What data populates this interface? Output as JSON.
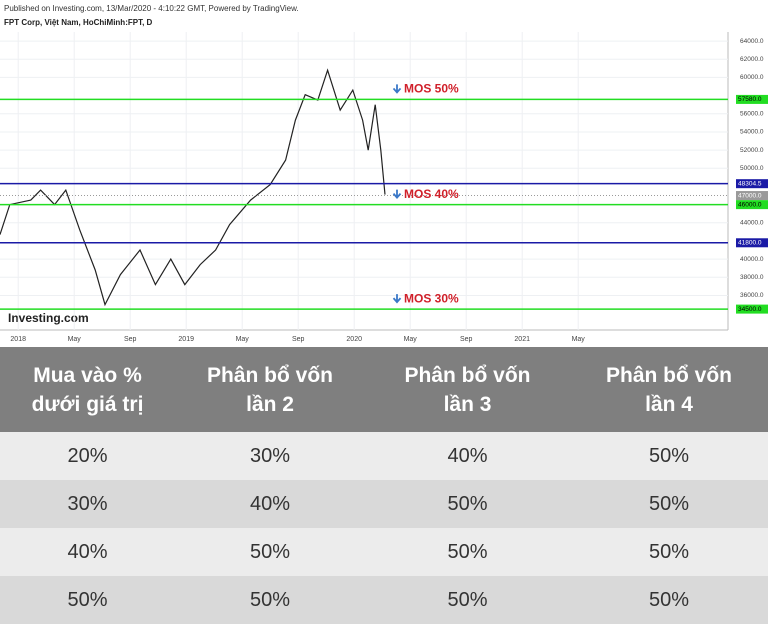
{
  "chart_data": {
    "type": "line",
    "header": "Published on Investing.com, 13/Mar/2020 - 4:10:22 GMT, Powered by TradingView.",
    "title": "FPT Corp, Việt Nam, HoChiMinh:FPT, D",
    "logo": "Investing.com",
    "color": "#222222",
    "x": [
      -1.3,
      -0.6,
      0.9,
      1.6,
      2.6,
      3.4,
      4.4,
      5.5,
      6.2,
      7.3,
      8.7,
      9.8,
      10.9,
      11.9,
      13.0,
      14.1,
      15.1,
      16.6,
      18.0,
      19.1,
      19.8,
      20.5,
      21.4,
      22.1,
      23.0,
      23.9,
      24.6,
      25.0,
      25.5,
      25.9,
      26.2
    ],
    "values": [
      42700,
      46000,
      46500,
      47600,
      46000,
      47600,
      43200,
      38800,
      35000,
      38300,
      41000,
      37200,
      40000,
      37200,
      39400,
      41000,
      43800,
      46500,
      48200,
      50900,
      55300,
      58100,
      57500,
      60800,
      56400,
      58600,
      55300,
      52000,
      57000,
      52000,
      47100
    ],
    "xlim": [
      -1.3,
      50.7
    ],
    "ylim": [
      32200,
      65000
    ],
    "xticks": [
      {
        "value": 0,
        "label": "2018"
      },
      {
        "value": 4,
        "label": "May"
      },
      {
        "value": 8,
        "label": "Sep"
      },
      {
        "value": 12,
        "label": "2019"
      },
      {
        "value": 16,
        "label": "May"
      },
      {
        "value": 20,
        "label": "Sep"
      },
      {
        "value": 24,
        "label": "2020"
      },
      {
        "value": 28,
        "label": "May"
      },
      {
        "value": 32,
        "label": "Sep"
      },
      {
        "value": 36,
        "label": "2021"
      },
      {
        "value": 40,
        "label": "May"
      }
    ],
    "yticks": [
      {
        "value": 36000,
        "label": "36000.0"
      },
      {
        "value": 38000,
        "label": "38000.0"
      },
      {
        "value": 40000,
        "label": "40000.0"
      },
      {
        "value": 44000,
        "label": "44000.0"
      },
      {
        "value": 50000,
        "label": "50000.0"
      },
      {
        "value": 52000,
        "label": "52000.0"
      },
      {
        "value": 54000,
        "label": "54000.0"
      },
      {
        "value": 56000,
        "label": "56000.0"
      },
      {
        "value": 60000,
        "label": "60000.0"
      },
      {
        "value": 62000,
        "label": "62000.0"
      },
      {
        "value": 64000,
        "label": "64000.0"
      }
    ],
    "grid": true,
    "levels": [
      {
        "value": 57580,
        "label": "57580.0",
        "color": "#22dd22",
        "label_color": "#000000",
        "note": "MOS 50%"
      },
      {
        "value": 48304.5,
        "label": "48304.5",
        "color": "#1a1aa6",
        "label_color": "#ffffff"
      },
      {
        "value": 47000,
        "label": "47000.0",
        "color": "#9a9a9a",
        "label_color": "#ffffff",
        "dotted": true
      },
      {
        "value": 46000,
        "label": "46000.0",
        "color": "#22dd22",
        "label_color": "#000000",
        "note": "MOS 40%"
      },
      {
        "value": 41800,
        "label": "41800.0",
        "color": "#1a1aa6",
        "label_color": "#ffffff"
      },
      {
        "value": 34500,
        "label": "34500.0",
        "color": "#22dd22",
        "label_color": "#000000",
        "note": "MOS 30%"
      }
    ]
  },
  "table": {
    "header": [
      [
        "Mua vào %",
        "dưới giá trị"
      ],
      [
        "Phân bổ vốn",
        "lần 2"
      ],
      [
        "Phân bổ vốn",
        "lần 3"
      ],
      [
        "Phân bổ vốn",
        "lần 4"
      ]
    ],
    "rows": [
      [
        "20%",
        "30%",
        "40%",
        "50%"
      ],
      [
        "30%",
        "40%",
        "50%",
        "50%"
      ],
      [
        "40%",
        "50%",
        "50%",
        "50%"
      ],
      [
        "50%",
        "50%",
        "50%",
        "50%"
      ]
    ]
  }
}
